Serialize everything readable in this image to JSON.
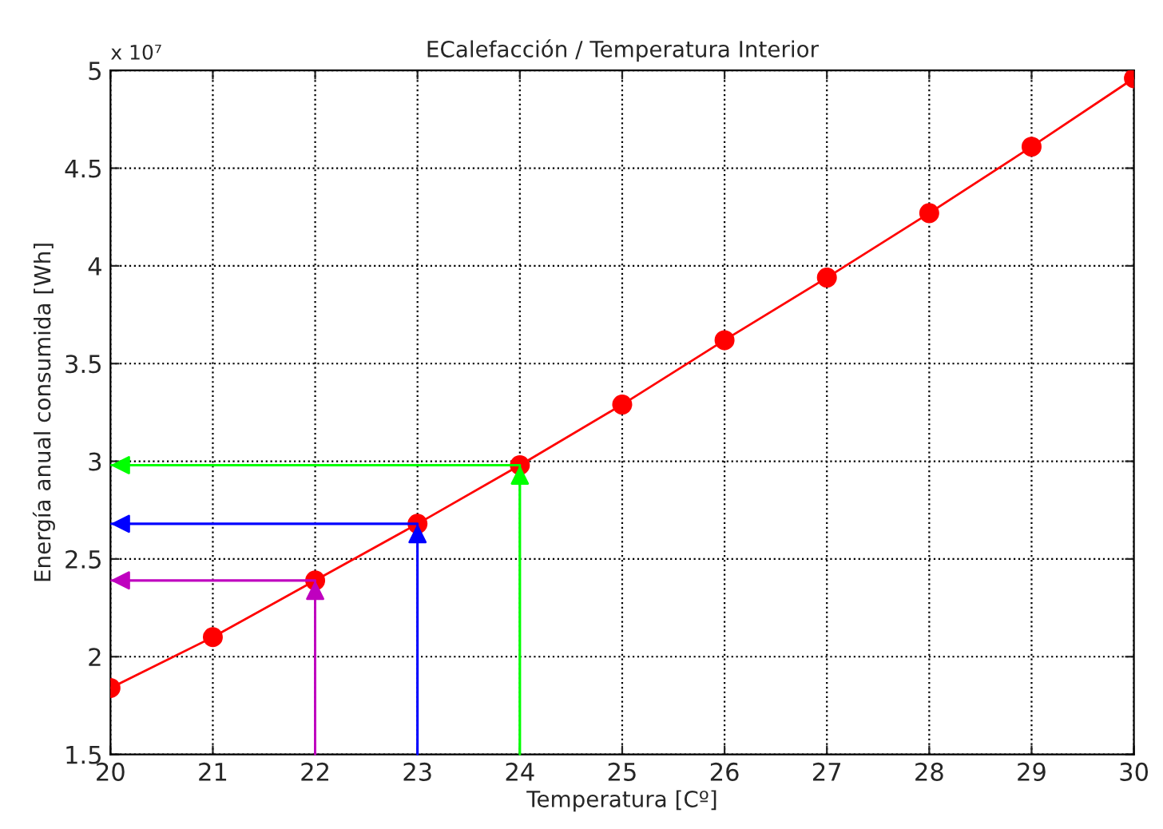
{
  "chart_data": {
    "type": "line",
    "title": "ECalefacción / Temperatura Interior",
    "xlabel": "Temperatura [Cº]",
    "ylabel": "Energía anual consumida [Wh]",
    "x": [
      20,
      21,
      22,
      23,
      24,
      25,
      26,
      27,
      28,
      29,
      30
    ],
    "series": [
      {
        "color": "#ff0000",
        "marker": "circle",
        "values": [
          1.84,
          2.1,
          2.39,
          2.68,
          2.98,
          3.29,
          3.62,
          3.94,
          4.27,
          4.61,
          4.96
        ]
      },
      {
        "color": "#bf00bf",
        "marker": "none",
        "x": [
          22,
          22,
          20
        ],
        "values": [
          1.5,
          2.39,
          2.39
        ]
      },
      {
        "color": "#0000ff",
        "marker": "none",
        "x": [
          23,
          23,
          20
        ],
        "values": [
          1.5,
          2.68,
          2.68
        ]
      },
      {
        "color": "#00ff00",
        "marker": "none",
        "x": [
          24,
          24,
          20
        ],
        "values": [
          1.5,
          2.98,
          2.98
        ]
      }
    ],
    "xlim": [
      20,
      30
    ],
    "xticks": [
      20,
      21,
      22,
      23,
      24,
      25,
      26,
      27,
      28,
      29,
      30
    ],
    "ylim": [
      1.5,
      5
    ],
    "yticks": [
      1.5,
      2,
      2.5,
      3,
      3.5,
      4,
      4.5,
      5
    ],
    "annotations": [
      "x 10⁷"
    ],
    "grid": true,
    "legend": false,
    "line_style": "solid"
  }
}
